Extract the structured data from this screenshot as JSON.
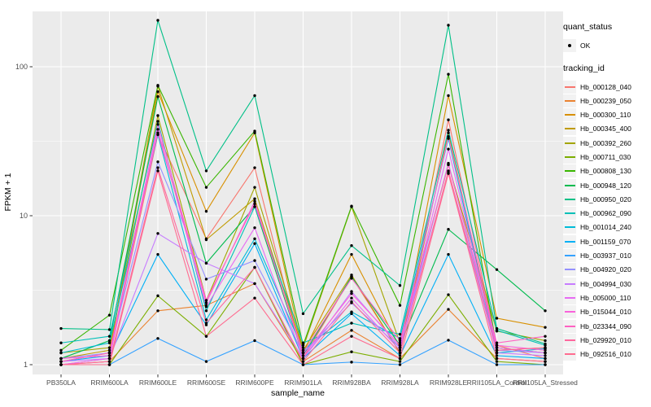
{
  "chart_data": {
    "type": "line",
    "title": "",
    "xlabel": "sample_name",
    "ylabel": "FPKM + 1",
    "x_categories": [
      "PB350LA",
      "RRIM600LA",
      "RRIM600LE",
      "RRIM600SE",
      "RRIM600PE",
      "RRIM901LA",
      "RRIM928BA",
      "RRIM928LA",
      "RRIM928LE",
      "RRII105LA_Control",
      "RRII105LA_Stressed"
    ],
    "y_axis": {
      "scale": "log10",
      "tick_labels": [
        "1",
        "10",
        "100"
      ],
      "tick_values": [
        1,
        10,
        100
      ],
      "minor_tick_values": [
        3.1623,
        31.623
      ],
      "range": [
        0.86,
        235
      ]
    },
    "style": {
      "panel_background": "#EBEBEB",
      "grid_color": "#FFFFFF",
      "point_color": "#000000",
      "tick_label_color": "#4D4D4D",
      "tick_mark_color": "#333333"
    },
    "legend": {
      "position": "right",
      "groups": [
        {
          "title": "quant_status",
          "items": [
            {
              "label": "OK",
              "symbol": "point",
              "color": "#000000"
            }
          ]
        },
        {
          "title": "tracking_id",
          "items_source": "series"
        }
      ]
    },
    "series": [
      {
        "name": "Hb_000128_040",
        "color": "#F8766D",
        "values": [
          1.0,
          1.1,
          35,
          7.0,
          21,
          1.1,
          3.9,
          1.2,
          44,
          1.35,
          1.1
        ]
      },
      {
        "name": "Hb_000239_050",
        "color": "#EA8331",
        "values": [
          1.0,
          1.05,
          2.3,
          2.5,
          3.5,
          1.05,
          1.7,
          1.1,
          2.35,
          1.1,
          1.05
        ]
      },
      {
        "name": "Hb_000300_110",
        "color": "#D89000",
        "values": [
          1.05,
          1.2,
          68,
          10.7,
          36,
          1.2,
          5.5,
          1.3,
          64,
          2.05,
          1.78
        ]
      },
      {
        "name": "Hb_000345_400",
        "color": "#C09B00",
        "values": [
          1.1,
          1.25,
          74,
          6.9,
          13,
          1.25,
          4.0,
          1.2,
          36,
          1.25,
          1.3
        ]
      },
      {
        "name": "Hb_000392_260",
        "color": "#A3A500",
        "values": [
          1.2,
          1.3,
          47,
          2.7,
          15.5,
          1.3,
          11.5,
          1.4,
          22,
          1.68,
          1.45
        ]
      },
      {
        "name": "Hb_000711_030",
        "color": "#7CAE00",
        "values": [
          1.0,
          1.0,
          2.9,
          1.55,
          4.5,
          1.0,
          1.22,
          1.05,
          2.95,
          1.05,
          1.0
        ]
      },
      {
        "name": "Hb_000808_130",
        "color": "#39B600",
        "values": [
          1.25,
          2.15,
          75,
          15.5,
          37,
          1.35,
          11.6,
          2.5,
          89,
          1.3,
          1.2
        ]
      },
      {
        "name": "Hb_000948_120",
        "color": "#00BB4E",
        "values": [
          1.1,
          1.45,
          63,
          4.8,
          11.5,
          1.15,
          3.9,
          1.35,
          8.1,
          4.35,
          2.3
        ]
      },
      {
        "name": "Hb_000950_020",
        "color": "#00C087",
        "values": [
          1.75,
          1.72,
          205,
          20,
          64,
          2.2,
          6.3,
          3.4,
          190,
          1.75,
          1.38
        ]
      },
      {
        "name": "Hb_000962_090",
        "color": "#00C0B8",
        "values": [
          1.4,
          1.55,
          43,
          2.3,
          11.5,
          1.4,
          1.9,
          1.6,
          37.5,
          1.7,
          1.35
        ]
      },
      {
        "name": "Hb_001014_240",
        "color": "#00BCD8",
        "values": [
          1.2,
          1.4,
          35,
          2.0,
          7.0,
          1.25,
          2.26,
          1.5,
          33,
          1.2,
          1.28
        ]
      },
      {
        "name": "Hb_001159_070",
        "color": "#00B0F6",
        "values": [
          1.05,
          1.15,
          5.5,
          1.85,
          6.5,
          1.1,
          2.2,
          1.15,
          5.5,
          1.15,
          1.1
        ]
      },
      {
        "name": "Hb_003937_010",
        "color": "#35A2FF",
        "values": [
          1.0,
          1.0,
          1.5,
          1.05,
          1.45,
          1.0,
          1.04,
          1.0,
          1.46,
          1.0,
          1.0
        ]
      },
      {
        "name": "Hb_004920_020",
        "color": "#9590FF",
        "values": [
          1.1,
          1.2,
          23,
          3.75,
          5.0,
          1.2,
          2.6,
          1.3,
          22.5,
          1.25,
          1.2
        ]
      },
      {
        "name": "Hb_004994_030",
        "color": "#C77CFF",
        "values": [
          1.05,
          1.1,
          7.6,
          4.8,
          3.5,
          1.1,
          3.1,
          1.3,
          19.5,
          1.2,
          1.15
        ]
      },
      {
        "name": "Hb_005000_110",
        "color": "#E76BF3",
        "values": [
          1.0,
          1.1,
          38,
          2.45,
          8.3,
          1.1,
          2.8,
          1.25,
          28,
          1.3,
          1.2
        ]
      },
      {
        "name": "Hb_015044_010",
        "color": "#FA62DB",
        "values": [
          1.1,
          1.15,
          41,
          2.6,
          12.5,
          1.15,
          3.0,
          1.35,
          34,
          1.35,
          1.25
        ]
      },
      {
        "name": "Hb_023344_090",
        "color": "#FF61C2",
        "values": [
          1.05,
          1.2,
          36,
          2.7,
          12,
          1.2,
          3.8,
          1.45,
          22,
          1.4,
          1.55
        ]
      },
      {
        "name": "Hb_029920_010",
        "color": "#FF689E",
        "values": [
          1.0,
          1.05,
          21,
          1.9,
          4.5,
          1.05,
          2.65,
          1.2,
          20,
          1.25,
          1.3
        ]
      },
      {
        "name": "Hb_092516_010",
        "color": "#FF6C90",
        "values": [
          1.0,
          1.0,
          20,
          1.55,
          2.8,
          1.0,
          1.55,
          1.1,
          19.2,
          1.1,
          1.05
        ]
      }
    ]
  }
}
